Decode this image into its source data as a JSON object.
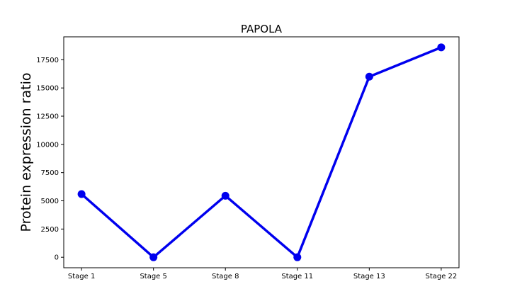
{
  "chart_data": {
    "type": "line",
    "title": "PAPOLA",
    "xlabel": "",
    "ylabel": "Protein expression ratio",
    "categories": [
      "Stage 1",
      "Stage 5",
      "Stage 8",
      "Stage 11",
      "Stage 13",
      "Stage 22"
    ],
    "series": [
      {
        "values": [
          5600,
          0,
          5450,
          0,
          16000,
          18600
        ],
        "color": "#0000ee"
      }
    ],
    "y_ticks": [
      0,
      2500,
      5000,
      7500,
      10000,
      12500,
      15000,
      17500
    ],
    "ylim": [
      -930,
      19530
    ],
    "grid": false,
    "legend": "none"
  }
}
